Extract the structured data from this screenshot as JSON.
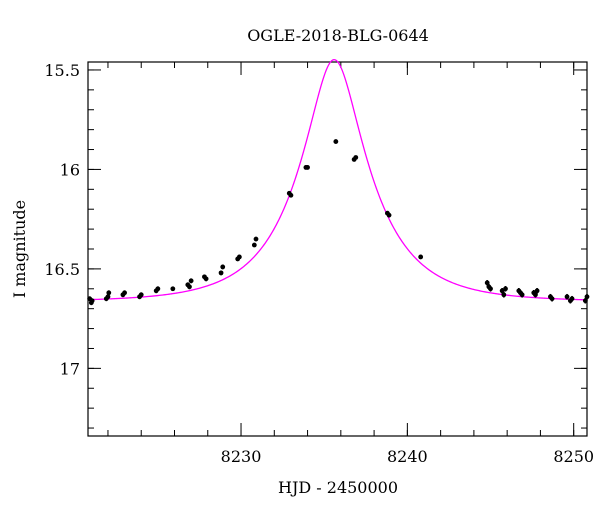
{
  "chart_data": {
    "type": "scatter",
    "title": "OGLE-2018-BLG-0644",
    "xlabel": "HJD - 2450000",
    "ylabel": "I magnitude",
    "xlim": [
      8220.8,
      8250.8
    ],
    "ylim": [
      17.34,
      15.46
    ],
    "y_inverted": true,
    "grid": false,
    "x_major_ticks": [
      8230,
      8240,
      8250
    ],
    "x_tick_labels": [
      "8230",
      "8240",
      "8250"
    ],
    "x_minor_step": 2,
    "y_major_ticks": [
      15.5,
      16,
      16.5,
      17
    ],
    "y_tick_labels": [
      "15.5",
      "16",
      "16.5",
      "17"
    ],
    "y_minor_step": 0.1,
    "point_color": "#000000",
    "model_color": "#ff00ff",
    "model": {
      "kind": "point-lens microlensing fit",
      "t0": 8235.6,
      "tE": 4.2,
      "u0": 0.34,
      "I_base": 16.665
    },
    "series": [
      {
        "kind": "data",
        "x": [
          8220.9,
          8221.0,
          8221.05,
          8221.9,
          8222.0,
          8222.05,
          8222.9,
          8223.0,
          8223.9,
          8224.0,
          8224.9,
          8225.0,
          8225.9,
          8226.8,
          8226.9,
          8227.0,
          8227.8,
          8227.9,
          8228.8,
          8228.9,
          8229.8,
          8229.9,
          8230.8,
          8230.9,
          8232.9,
          8233.0,
          8233.9,
          8234.0,
          8235.7,
          8236.8,
          8236.9,
          8238.8,
          8238.9,
          8240.8,
          8244.8,
          8244.9,
          8245.0,
          8245.7,
          8245.8,
          8245.9,
          8246.7,
          8246.8,
          8246.9,
          8247.6,
          8247.7,
          8247.8,
          8248.6,
          8248.7,
          8249.6,
          8249.8,
          8249.9,
          8250.7,
          8250.8
        ],
        "y": [
          16.65,
          16.67,
          16.66,
          16.65,
          16.64,
          16.62,
          16.63,
          16.62,
          16.64,
          16.63,
          16.61,
          16.6,
          16.6,
          16.58,
          16.59,
          16.56,
          16.54,
          16.55,
          16.52,
          16.49,
          16.45,
          16.44,
          16.38,
          16.35,
          16.12,
          16.13,
          15.99,
          15.99,
          15.86,
          15.95,
          15.94,
          16.22,
          16.23,
          16.44,
          16.57,
          16.59,
          16.6,
          16.61,
          16.63,
          16.6,
          16.61,
          16.62,
          16.63,
          16.62,
          16.63,
          16.61,
          16.64,
          16.65,
          16.64,
          16.66,
          16.65,
          16.66,
          16.64
        ],
        "yerr": [
          0.012,
          0.012,
          0.012,
          0.012,
          0.012,
          0.012,
          0.012,
          0.012,
          0.012,
          0.012,
          0.012,
          0.012,
          0.01,
          0.012,
          0.012,
          0.012,
          0.012,
          0.012,
          0.012,
          0.012,
          0.01,
          0.01,
          0.01,
          0.01,
          0.01,
          0.01,
          0.01,
          0.01,
          0.008,
          0.01,
          0.01,
          0.01,
          0.01,
          0.01,
          0.014,
          0.014,
          0.014,
          0.014,
          0.014,
          0.014,
          0.014,
          0.014,
          0.014,
          0.014,
          0.014,
          0.014,
          0.014,
          0.014,
          0.014,
          0.014,
          0.014,
          0.014,
          0.014
        ]
      }
    ]
  }
}
